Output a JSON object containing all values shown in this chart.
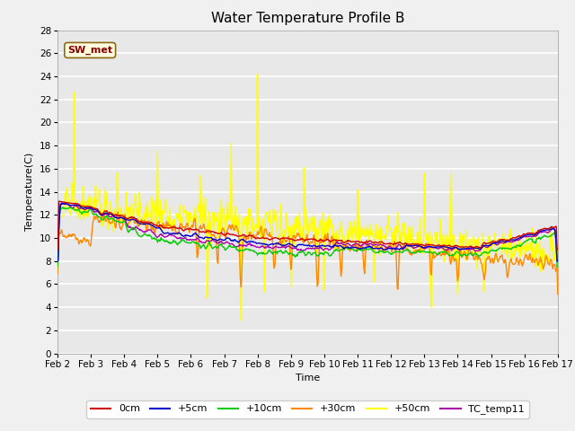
{
  "title": "Water Temperature Profile B",
  "xlabel": "Time",
  "ylabel": "Temperature(C)",
  "ylim": [
    0,
    28
  ],
  "xlim": [
    0,
    360
  ],
  "x_tick_labels": [
    "Feb 2",
    "Feb 3",
    "Feb 4",
    "Feb 5",
    "Feb 6",
    "Feb 7",
    "Feb 8",
    "Feb 9",
    "Feb 10",
    "Feb 11",
    "Feb 12",
    "Feb 13",
    "Feb 14",
    "Feb 15",
    "Feb 16",
    "Feb 17"
  ],
  "x_tick_positions": [
    0,
    24,
    48,
    72,
    96,
    120,
    144,
    168,
    192,
    216,
    240,
    264,
    288,
    312,
    336,
    360
  ],
  "series_colors": {
    "0cm": "#cc0000",
    "+5cm": "#0000cc",
    "+10cm": "#00cc00",
    "+30cm": "#ff8800",
    "+50cm": "#ffff00",
    "TC_temp11": "#aa00aa"
  },
  "annotation_text": "SW_met",
  "annotation_color": "#8b0000",
  "plot_bg_color": "#e8e8e8",
  "title_fontsize": 11,
  "axis_fontsize": 8,
  "tick_fontsize": 7.5
}
